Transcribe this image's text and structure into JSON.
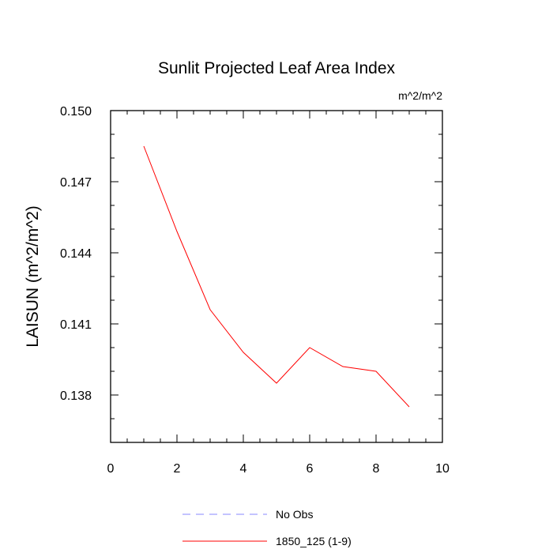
{
  "chart_data": {
    "type": "line",
    "title": "Sunlit Projected Leaf Area Index",
    "units_label": "m^2/m^2",
    "ylabel": "LAISUN  (m^2/m^2)",
    "xlabel": "",
    "xlim": [
      0,
      10
    ],
    "ylim": [
      0.136,
      0.15
    ],
    "x_ticks": [
      "0",
      "2",
      "4",
      "6",
      "8",
      "10"
    ],
    "x_tick_values": [
      0,
      2,
      4,
      6,
      8,
      10
    ],
    "y_ticks": [
      "0.138",
      "0.141",
      "0.144",
      "0.147",
      "0.150"
    ],
    "y_tick_values": [
      0.138,
      0.141,
      0.144,
      0.147,
      0.15
    ],
    "grid": false,
    "legend_position": "bottom",
    "series": [
      {
        "name": "No Obs",
        "color": "#8888ff",
        "style": "dashed",
        "x": [],
        "y": []
      },
      {
        "name": "1850_125 (1-9)",
        "color": "#ff0000",
        "style": "solid",
        "x": [
          1,
          2,
          3,
          4,
          5,
          6,
          7,
          8,
          9
        ],
        "y": [
          0.1485,
          0.1449,
          0.1416,
          0.1398,
          0.1385,
          0.14,
          0.1392,
          0.139,
          0.1375
        ]
      }
    ]
  }
}
